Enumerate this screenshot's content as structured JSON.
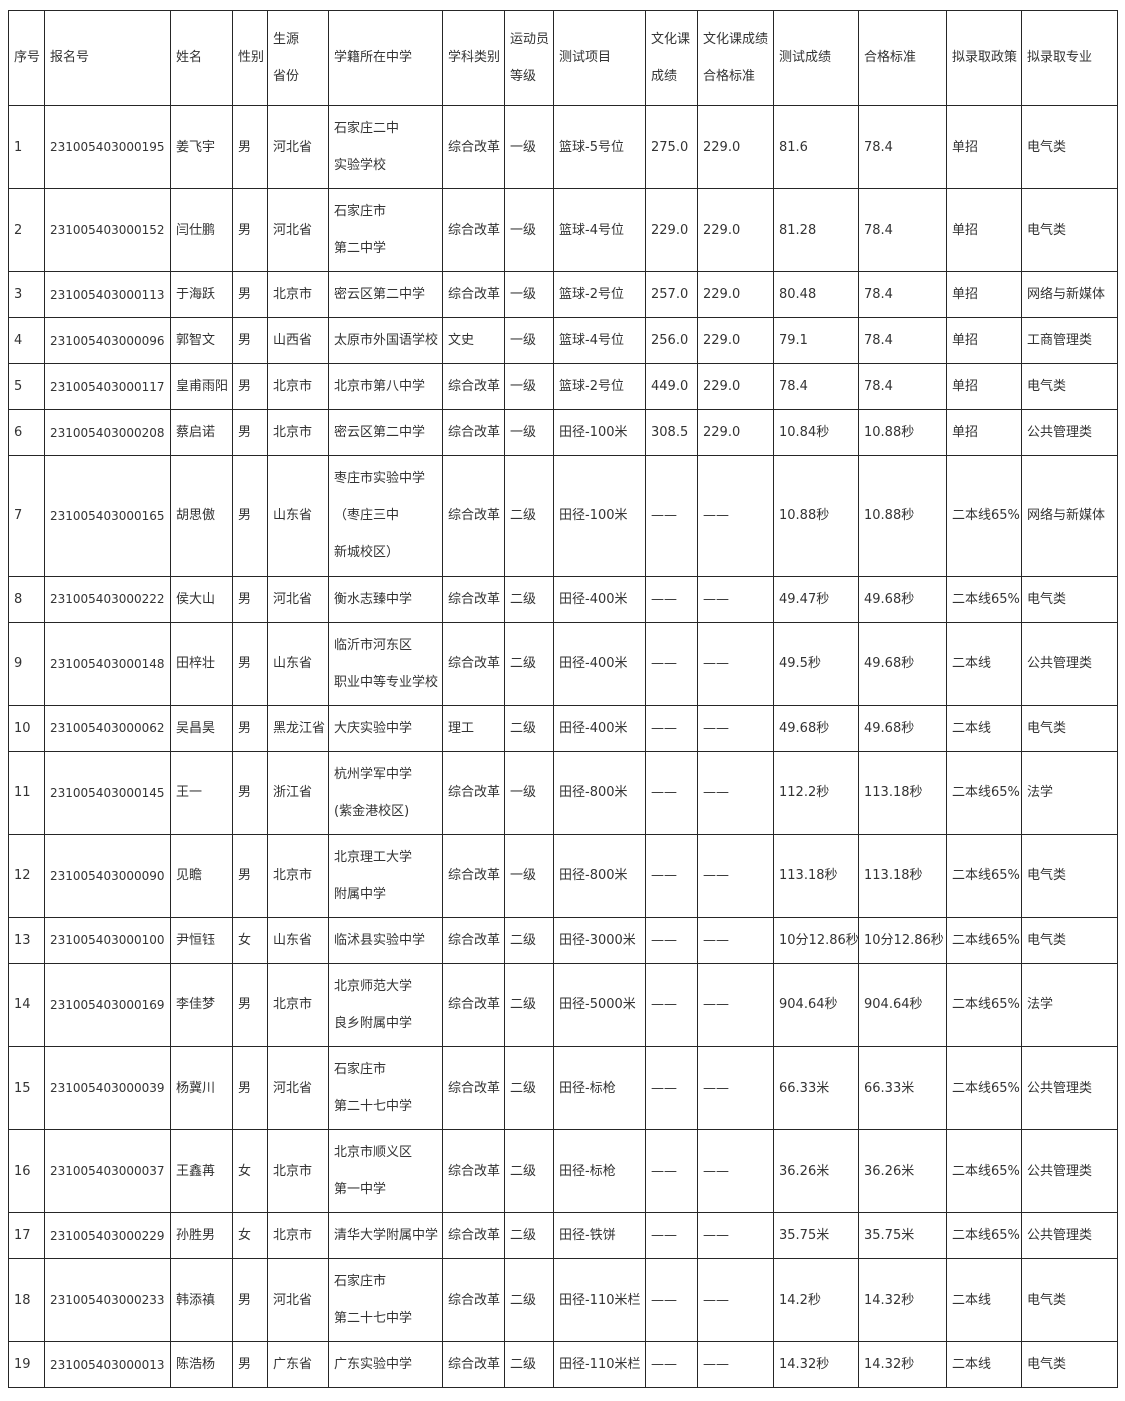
{
  "table": {
    "columns": [
      {
        "key": "no",
        "label": "序号"
      },
      {
        "key": "reg_no",
        "label": "报名号"
      },
      {
        "key": "name",
        "label": "姓名"
      },
      {
        "key": "gender",
        "label": "性别"
      },
      {
        "key": "province",
        "label": "生源\n省份"
      },
      {
        "key": "school",
        "label": "学籍所在中学"
      },
      {
        "key": "subject",
        "label": "学科类别"
      },
      {
        "key": "level",
        "label": "运动员\n等级"
      },
      {
        "key": "test_item",
        "label": "测试项目"
      },
      {
        "key": "culture_score",
        "label": "文化课\n成绩"
      },
      {
        "key": "culture_pass",
        "label": "文化课成绩\n合格标准"
      },
      {
        "key": "test_score",
        "label": "测试成绩"
      },
      {
        "key": "pass_standard",
        "label": "合格标准"
      },
      {
        "key": "policy",
        "label": "拟录取政策"
      },
      {
        "key": "major",
        "label": "拟录取专业"
      }
    ],
    "rows": [
      {
        "no": "1",
        "reg_no": "231005403000195",
        "name": "姜飞宇",
        "gender": "男",
        "province": "河北省",
        "school": "石家庄二中\n实验学校",
        "subject": "综合改革",
        "level": "一级",
        "test_item": "篮球-5号位",
        "culture_score": "275.0",
        "culture_pass": "229.0",
        "test_score": "81.6",
        "pass_standard": "78.4",
        "policy": "单招",
        "major": "电气类"
      },
      {
        "no": "2",
        "reg_no": "231005403000152",
        "name": "闫仕鹏",
        "gender": "男",
        "province": "河北省",
        "school": "石家庄市\n第二中学",
        "subject": "综合改革",
        "level": "一级",
        "test_item": "篮球-4号位",
        "culture_score": "229.0",
        "culture_pass": "229.0",
        "test_score": "81.28",
        "pass_standard": "78.4",
        "policy": "单招",
        "major": "电气类"
      },
      {
        "no": "3",
        "reg_no": "231005403000113",
        "name": "于海跃",
        "gender": "男",
        "province": "北京市",
        "school": "密云区第二中学",
        "subject": "综合改革",
        "level": "一级",
        "test_item": "篮球-2号位",
        "culture_score": "257.0",
        "culture_pass": "229.0",
        "test_score": "80.48",
        "pass_standard": "78.4",
        "policy": "单招",
        "major": "网络与新媒体"
      },
      {
        "no": "4",
        "reg_no": "231005403000096",
        "name": "郭智文",
        "gender": "男",
        "province": "山西省",
        "school": "太原市外国语学校",
        "subject": "文史",
        "level": "一级",
        "test_item": "篮球-4号位",
        "culture_score": "256.0",
        "culture_pass": "229.0",
        "test_score": "79.1",
        "pass_standard": "78.4",
        "policy": "单招",
        "major": "工商管理类"
      },
      {
        "no": "5",
        "reg_no": "231005403000117",
        "name": "皇甫雨阳",
        "gender": "男",
        "province": "北京市",
        "school": "北京市第八中学",
        "subject": "综合改革",
        "level": "一级",
        "test_item": "篮球-2号位",
        "culture_score": "449.0",
        "culture_pass": "229.0",
        "test_score": "78.4",
        "pass_standard": "78.4",
        "policy": "单招",
        "major": "电气类"
      },
      {
        "no": "6",
        "reg_no": "231005403000208",
        "name": "蔡启诺",
        "gender": "男",
        "province": "北京市",
        "school": "密云区第二中学",
        "subject": "综合改革",
        "level": "一级",
        "test_item": "田径-100米",
        "culture_score": "308.5",
        "culture_pass": "229.0",
        "test_score": "10.84秒",
        "pass_standard": "10.88秒",
        "policy": "单招",
        "major": "公共管理类"
      },
      {
        "no": "7",
        "reg_no": "231005403000165",
        "name": "胡思傲",
        "gender": "男",
        "province": "山东省",
        "school": "枣庄市实验中学\n（枣庄三中\n新城校区）",
        "subject": "综合改革",
        "level": "二级",
        "test_item": "田径-100米",
        "culture_score": "——",
        "culture_pass": "——",
        "test_score": "10.88秒",
        "pass_standard": "10.88秒",
        "policy": "二本线65%",
        "major": "网络与新媒体"
      },
      {
        "no": "8",
        "reg_no": "231005403000222",
        "name": "侯大山",
        "gender": "男",
        "province": "河北省",
        "school": "衡水志臻中学",
        "subject": "综合改革",
        "level": "二级",
        "test_item": "田径-400米",
        "culture_score": "——",
        "culture_pass": "——",
        "test_score": "49.47秒",
        "pass_standard": "49.68秒",
        "policy": "二本线65%",
        "major": "电气类"
      },
      {
        "no": "9",
        "reg_no": "231005403000148",
        "name": "田梓壮",
        "gender": "男",
        "province": "山东省",
        "school": "临沂市河东区\n职业中等专业学校",
        "subject": "综合改革",
        "level": "二级",
        "test_item": "田径-400米",
        "culture_score": "——",
        "culture_pass": "——",
        "test_score": "49.5秒",
        "pass_standard": "49.68秒",
        "policy": "二本线",
        "major": "公共管理类"
      },
      {
        "no": "10",
        "reg_no": "231005403000062",
        "name": "吴昌昊",
        "gender": "男",
        "province": "黑龙江省",
        "school": "大庆实验中学",
        "subject": "理工",
        "level": "二级",
        "test_item": "田径-400米",
        "culture_score": "——",
        "culture_pass": "——",
        "test_score": "49.68秒",
        "pass_standard": "49.68秒",
        "policy": "二本线",
        "major": "电气类"
      },
      {
        "no": "11",
        "reg_no": "231005403000145",
        "name": "王一",
        "gender": "男",
        "province": "浙江省",
        "school": "杭州学军中学\n(紫金港校区)",
        "subject": "综合改革",
        "level": "一级",
        "test_item": "田径-800米",
        "culture_score": "——",
        "culture_pass": "——",
        "test_score": "112.2秒",
        "pass_standard": "113.18秒",
        "policy": "二本线65%",
        "major": "法学"
      },
      {
        "no": "12",
        "reg_no": "231005403000090",
        "name": "见瞻",
        "gender": "男",
        "province": "北京市",
        "school": "北京理工大学\n附属中学",
        "subject": "综合改革",
        "level": "一级",
        "test_item": "田径-800米",
        "culture_score": "——",
        "culture_pass": "——",
        "test_score": "113.18秒",
        "pass_standard": "113.18秒",
        "policy": "二本线65%",
        "major": "电气类"
      },
      {
        "no": "13",
        "reg_no": "231005403000100",
        "name": "尹恒钰",
        "gender": "女",
        "province": "山东省",
        "school": "临沭县实验中学",
        "subject": "综合改革",
        "level": "二级",
        "test_item": "田径-3000米",
        "culture_score": "——",
        "culture_pass": "——",
        "test_score": "10分12.86秒",
        "pass_standard": "10分12.86秒",
        "policy": "二本线65%",
        "major": "电气类"
      },
      {
        "no": "14",
        "reg_no": "231005403000169",
        "name": "李佳梦",
        "gender": "男",
        "province": "北京市",
        "school": "北京师范大学\n良乡附属中学",
        "subject": "综合改革",
        "level": "二级",
        "test_item": "田径-5000米",
        "culture_score": "——",
        "culture_pass": "——",
        "test_score": "904.64秒",
        "pass_standard": "904.64秒",
        "policy": "二本线65%",
        "major": "法学"
      },
      {
        "no": "15",
        "reg_no": "231005403000039",
        "name": "杨冀川",
        "gender": "男",
        "province": "河北省",
        "school": "石家庄市\n第二十七中学",
        "subject": "综合改革",
        "level": "二级",
        "test_item": "田径-标枪",
        "culture_score": "——",
        "culture_pass": "——",
        "test_score": "66.33米",
        "pass_standard": "66.33米",
        "policy": "二本线65%",
        "major": "公共管理类"
      },
      {
        "no": "16",
        "reg_no": "231005403000037",
        "name": "王鑫苒",
        "gender": "女",
        "province": "北京市",
        "school": "北京市顺义区\n第一中学",
        "subject": "综合改革",
        "level": "二级",
        "test_item": "田径-标枪",
        "culture_score": "——",
        "culture_pass": "——",
        "test_score": "36.26米",
        "pass_standard": "36.26米",
        "policy": "二本线65%",
        "major": "公共管理类"
      },
      {
        "no": "17",
        "reg_no": "231005403000229",
        "name": "孙胜男",
        "gender": "女",
        "province": "北京市",
        "school": "清华大学附属中学",
        "subject": "综合改革",
        "level": "二级",
        "test_item": "田径-铁饼",
        "culture_score": "——",
        "culture_pass": "——",
        "test_score": "35.75米",
        "pass_standard": "35.75米",
        "policy": "二本线65%",
        "major": "公共管理类"
      },
      {
        "no": "18",
        "reg_no": "231005403000233",
        "name": "韩添禛",
        "gender": "男",
        "province": "河北省",
        "school": "石家庄市\n第二十七中学",
        "subject": "综合改革",
        "level": "二级",
        "test_item": "田径-110米栏",
        "culture_score": "——",
        "culture_pass": "——",
        "test_score": "14.2秒",
        "pass_standard": "14.32秒",
        "policy": "二本线",
        "major": "电气类"
      },
      {
        "no": "19",
        "reg_no": "231005403000013",
        "name": "陈浩杨",
        "gender": "男",
        "province": "广东省",
        "school": "广东实验中学",
        "subject": "综合改革",
        "level": "二级",
        "test_item": "田径-110米栏",
        "culture_score": "——",
        "culture_pass": "——",
        "test_score": "14.32秒",
        "pass_standard": "14.32秒",
        "policy": "二本线",
        "major": "电气类"
      }
    ]
  }
}
